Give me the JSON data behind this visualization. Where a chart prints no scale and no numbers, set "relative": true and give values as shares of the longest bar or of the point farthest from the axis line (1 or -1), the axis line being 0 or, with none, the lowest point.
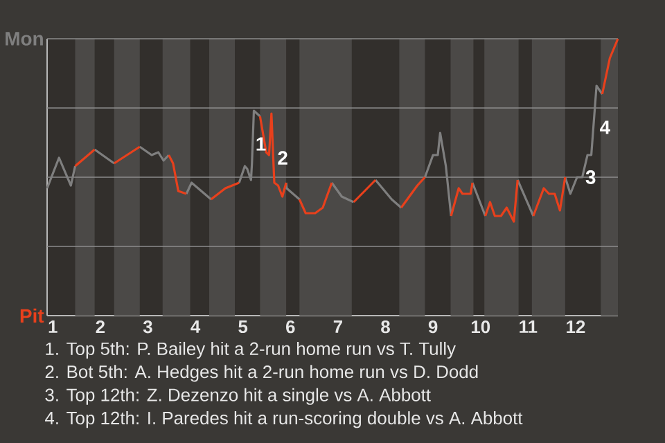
{
  "chart_data": {
    "type": "line",
    "marker": "none",
    "relative": true,
    "legend": "left",
    "xlim": [
      0.88,
      12.89
    ],
    "xticks": [
      1,
      2,
      3,
      4,
      5,
      6,
      7,
      8,
      9,
      10,
      11,
      12
    ],
    "series": [
      {
        "name": "Mon",
        "color": "#7f7f7f",
        "x": [
          0.88,
          1.13,
          1.38,
          1.47,
          null,
          1.88,
          2.29,
          null,
          2.83,
          3.08,
          3.22,
          3.33,
          3.44,
          null,
          3.81,
          3.92,
          4.33,
          null,
          4.92,
          5.04,
          5.09,
          5.17,
          5.19,
          5.23,
          5.36,
          null,
          5.91,
          5.92,
          6.19,
          null,
          6.87,
          7.08,
          7.33,
          null,
          7.79,
          8.13,
          8.33,
          null,
          8.83,
          9.0,
          9.1,
          9.15,
          9.27,
          9.38,
          null,
          9.83,
          10.1,
          null,
          10.78,
          11.11,
          null,
          11.78,
          11.89,
          12.03,
          12.14,
          12.25,
          12.33,
          12.44,
          12.56
        ],
        "values": [
          0.46,
          0.57,
          0.47,
          0.54,
          null,
          0.6,
          0.55,
          null,
          0.61,
          0.58,
          0.59,
          0.56,
          0.58,
          null,
          0.44,
          0.48,
          0.42,
          null,
          0.48,
          0.54,
          0.53,
          0.49,
          0.55,
          0.74,
          0.72,
          null,
          0.48,
          0.46,
          0.42,
          null,
          0.48,
          0.43,
          0.41,
          null,
          0.49,
          0.42,
          0.39,
          null,
          0.5,
          0.58,
          0.58,
          0.66,
          0.54,
          0.36,
          null,
          0.48,
          0.36,
          null,
          0.49,
          0.36,
          null,
          0.5,
          0.44,
          0.5,
          0.5,
          0.58,
          0.58,
          0.83,
          0.8
        ]
      },
      {
        "name": "Pit",
        "color": "#e8401c",
        "x": [
          1.47,
          1.88,
          null,
          2.29,
          2.83,
          null,
          3.44,
          3.53,
          3.64,
          3.81,
          null,
          4.33,
          4.63,
          4.92,
          null,
          5.36,
          5.49,
          5.55,
          5.6,
          5.66,
          5.74,
          5.83,
          5.91,
          null,
          6.19,
          6.32,
          6.52,
          6.68,
          6.87,
          null,
          7.33,
          7.79,
          null,
          8.33,
          8.67,
          8.83,
          null,
          9.38,
          9.54,
          9.62,
          9.79,
          9.83,
          null,
          10.1,
          10.2,
          10.3,
          10.43,
          10.55,
          10.7,
          10.78,
          null,
          11.11,
          11.33,
          11.44,
          11.56,
          11.67,
          11.78,
          null,
          12.56,
          12.72,
          12.89
        ],
        "values": [
          0.54,
          0.6,
          null,
          0.55,
          0.61,
          null,
          0.58,
          0.55,
          0.45,
          0.44,
          null,
          0.42,
          0.46,
          0.48,
          null,
          0.72,
          0.59,
          0.58,
          0.73,
          0.48,
          0.47,
          0.43,
          0.48,
          null,
          0.42,
          0.37,
          0.37,
          0.39,
          0.48,
          null,
          0.41,
          0.49,
          null,
          0.39,
          0.47,
          0.5,
          null,
          0.36,
          0.46,
          0.44,
          0.44,
          0.48,
          null,
          0.36,
          0.41,
          0.36,
          0.36,
          0.39,
          0.34,
          0.49,
          null,
          0.36,
          0.46,
          0.44,
          0.44,
          0.38,
          0.5,
          null,
          0.8,
          0.93,
          1.0
        ]
      }
    ],
    "ref_lines": [
      {
        "axis": "y",
        "value": 0.25,
        "color": "#8c8c8c"
      },
      {
        "axis": "y",
        "value": 0.5,
        "color": "#8c8c8c"
      },
      {
        "axis": "y",
        "value": 0.75,
        "color": "#8c8c8c"
      },
      {
        "axis": "y",
        "value": 1,
        "color": "#8c8c8c"
      }
    ],
    "bands": [
      {
        "axis": "x",
        "from": 1.47,
        "to": 1.88,
        "color": "#4b4947"
      },
      {
        "axis": "x",
        "from": 2.29,
        "to": 2.83,
        "color": "#4b4947"
      },
      {
        "axis": "x",
        "from": 3.31,
        "to": 3.89,
        "color": "#4b4947"
      },
      {
        "axis": "x",
        "from": 4.29,
        "to": 4.83,
        "color": "#4b4947"
      },
      {
        "axis": "x",
        "from": 5.36,
        "to": 5.91,
        "color": "#4b4947"
      },
      {
        "axis": "x",
        "from": 6.19,
        "to": 7.29,
        "color": "#4b4947"
      },
      {
        "axis": "x",
        "from": 8.29,
        "to": 8.83,
        "color": "#4b4947"
      },
      {
        "axis": "x",
        "from": 9.37,
        "to": 9.85,
        "color": "#4b4947"
      },
      {
        "axis": "x",
        "from": 10.08,
        "to": 10.8,
        "color": "#4b4947"
      },
      {
        "axis": "x",
        "from": 11.08,
        "to": 11.78,
        "color": "#4b4947"
      },
      {
        "axis": "x",
        "from": 12.53,
        "to": 12.89,
        "color": "#4b4947"
      }
    ],
    "annotations": [
      {
        "text": "1",
        "x": 5.2,
        "y": 0.62
      },
      {
        "text": "2",
        "x": 5.66,
        "y": 0.57
      },
      {
        "text": "3",
        "x": 12.14,
        "y": 0.5
      },
      {
        "text": "4",
        "x": 12.44,
        "y": 0.68
      },
      "1. Top 5th: P. Bailey hit a 2-run home run vs T. Tully",
      "2. Bot 5th: A. Hedges hit a 2-run home run vs D. Dodd",
      "3. Top 12th: Z. Dezenzo hit a single vs A. Abbott",
      "4. Top 12th: I. Paredes hit a run-scoring double vs A. Abbott"
    ]
  }
}
